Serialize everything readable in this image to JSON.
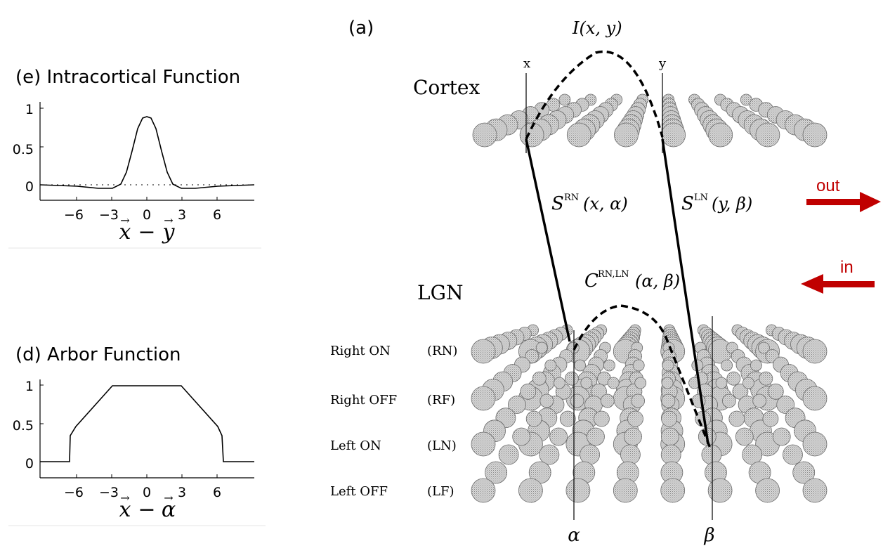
{
  "panel_e": {
    "title": "(e) Intracortical Function",
    "y_ticks": [
      "1",
      "0.5",
      "0"
    ],
    "x_ticks": [
      "−6",
      "−3",
      "0",
      "3",
      "6"
    ],
    "x_label_a": "x",
    "x_label_b": "y"
  },
  "panel_d": {
    "title": "(d) Arbor Function",
    "y_ticks": [
      "1",
      "0.5",
      "0"
    ],
    "x_ticks": [
      "−6",
      "−3",
      "0",
      "3",
      "6"
    ],
    "x_label_a": "x",
    "x_label_b": "α"
  },
  "panel_a": {
    "title": "(a)",
    "input_label": "I(x, y)",
    "cortex_label": "Cortex",
    "lgn_label": "LGN",
    "x_marker": "x",
    "y_marker": "y",
    "s_rn": {
      "base": "S",
      "sup": "RN",
      "args": "(x, α)"
    },
    "s_ln": {
      "base": "S",
      "sup": "LN",
      "args": "(y, β)"
    },
    "c_rnln": {
      "base": "C",
      "sup": "RN,LN",
      "args": "(α, β)"
    },
    "rows": [
      {
        "name": "Right ON",
        "abbr": "(RN)"
      },
      {
        "name": "Right OFF",
        "abbr": "(RF)"
      },
      {
        "name": "Left ON",
        "abbr": "(LN)"
      },
      {
        "name": "Left OFF",
        "abbr": "(LF)"
      }
    ],
    "alpha": "α",
    "beta": "β"
  },
  "arrows": {
    "out": "out",
    "in": "in",
    "color": "#c00000"
  }
}
